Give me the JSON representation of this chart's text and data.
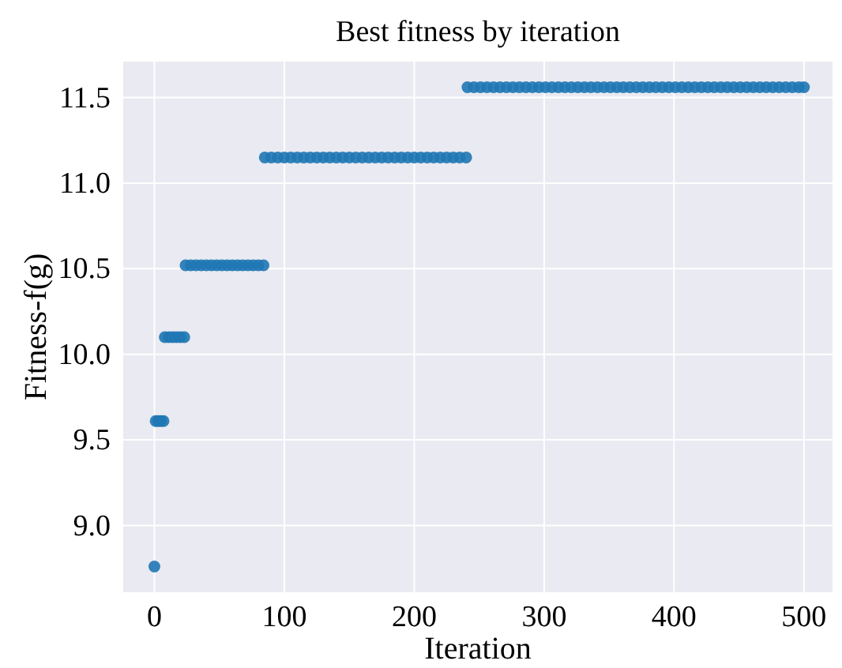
{
  "chart_data": {
    "type": "scatter",
    "title": "Best fitness by iteration",
    "xlabel": "Iteration",
    "ylabel": "Fitness-f(g)",
    "xlim": [
      -24,
      522
    ],
    "ylim": [
      8.61,
      11.71
    ],
    "xticks": [
      0,
      100,
      200,
      300,
      400,
      500
    ],
    "yticks": [
      {
        "value": 9.0,
        "label": "9.0"
      },
      {
        "value": 9.5,
        "label": "9.5"
      },
      {
        "value": 10.0,
        "label": "10.0"
      },
      {
        "value": 10.5,
        "label": "10.5"
      },
      {
        "value": 11.0,
        "label": "11.0"
      },
      {
        "value": 11.5,
        "label": "11.5"
      }
    ],
    "grid": true,
    "marker": "circle",
    "series": [
      {
        "color": "#1f77b4",
        "x": [
          0,
          1,
          3,
          5,
          7,
          8,
          11,
          14,
          17,
          20,
          23,
          24,
          28,
          32,
          36,
          40,
          44,
          48,
          52,
          56,
          60,
          64,
          68,
          72,
          76,
          80,
          84,
          85,
          90,
          95,
          100,
          105,
          110,
          115,
          120,
          125,
          130,
          135,
          140,
          145,
          150,
          155,
          160,
          165,
          170,
          175,
          180,
          185,
          190,
          195,
          200,
          205,
          210,
          215,
          220,
          225,
          230,
          235,
          240,
          241,
          246,
          251,
          256,
          261,
          266,
          271,
          276,
          281,
          286,
          291,
          296,
          301,
          306,
          311,
          316,
          321,
          326,
          331,
          336,
          341,
          346,
          351,
          356,
          361,
          366,
          371,
          376,
          381,
          386,
          391,
          396,
          401,
          406,
          411,
          416,
          421,
          426,
          431,
          436,
          441,
          446,
          451,
          456,
          461,
          466,
          471,
          476,
          481,
          486,
          491,
          496,
          500
        ],
        "values": [
          8.76,
          9.61,
          9.61,
          9.61,
          9.61,
          10.1,
          10.1,
          10.1,
          10.1,
          10.1,
          10.1,
          10.52,
          10.52,
          10.52,
          10.52,
          10.52,
          10.52,
          10.52,
          10.52,
          10.52,
          10.52,
          10.52,
          10.52,
          10.52,
          10.52,
          10.52,
          10.52,
          11.15,
          11.15,
          11.15,
          11.15,
          11.15,
          11.15,
          11.15,
          11.15,
          11.15,
          11.15,
          11.15,
          11.15,
          11.15,
          11.15,
          11.15,
          11.15,
          11.15,
          11.15,
          11.15,
          11.15,
          11.15,
          11.15,
          11.15,
          11.15,
          11.15,
          11.15,
          11.15,
          11.15,
          11.15,
          11.15,
          11.15,
          11.15,
          11.56,
          11.56,
          11.56,
          11.56,
          11.56,
          11.56,
          11.56,
          11.56,
          11.56,
          11.56,
          11.56,
          11.56,
          11.56,
          11.56,
          11.56,
          11.56,
          11.56,
          11.56,
          11.56,
          11.56,
          11.56,
          11.56,
          11.56,
          11.56,
          11.56,
          11.56,
          11.56,
          11.56,
          11.56,
          11.56,
          11.56,
          11.56,
          11.56,
          11.56,
          11.56,
          11.56,
          11.56,
          11.56,
          11.56,
          11.56,
          11.56,
          11.56,
          11.56,
          11.56,
          11.56,
          11.56,
          11.56,
          11.56,
          11.56,
          11.56,
          11.56,
          11.56,
          11.56
        ]
      }
    ]
  }
}
